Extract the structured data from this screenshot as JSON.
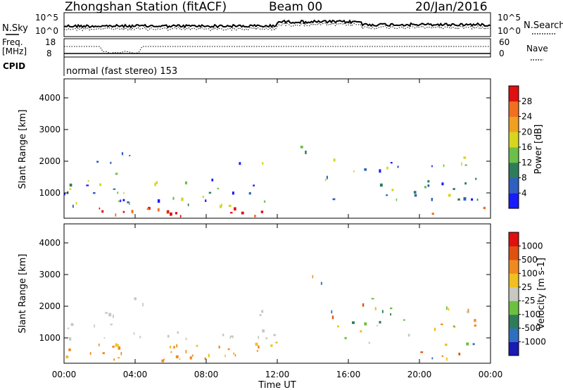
{
  "header": {
    "title": "Zhongshan Station (fitACF)",
    "beam": "Beam 00",
    "date": "20/Jan/2016"
  },
  "status_panel": {
    "nsky_label": "N.Sky",
    "nsearch_label": "N.Search",
    "nsky_ticks": [
      "10^5",
      "10^0"
    ],
    "freq_label_1": "Freq.",
    "freq_label_2": "[MHz]",
    "freq_ticks": [
      "18",
      "8"
    ],
    "nave_label": "Nave",
    "nave_ticks": [
      "60",
      "0"
    ],
    "cpid_label": "CPID",
    "mode_text": "normal (fast stereo) 153"
  },
  "chart_data": [
    {
      "type": "heatmap",
      "name": "power",
      "ylabel": "Slant Range [km]",
      "yticks": [
        1000,
        2000,
        3000,
        4000
      ],
      "ylim": [
        200,
        4600
      ],
      "colorbar_label": "Power [dB]",
      "colorbar_ticks": [
        "4",
        "8",
        "12",
        "16",
        "20",
        "24",
        "28"
      ],
      "colors": [
        "#1a1aff",
        "#2f5fbf",
        "#2e7d5a",
        "#6cbf4a",
        "#d6d61e",
        "#f0a020",
        "#f07020",
        "#e01010"
      ]
    },
    {
      "type": "heatmap",
      "name": "velocity",
      "ylabel": "Slant Range [km]",
      "yticks": [
        1000,
        2000,
        3000,
        4000
      ],
      "ylim": [
        200,
        4600
      ],
      "colorbar_label": "Velocity [m s-1]",
      "colorbar_ticks": [
        "1000",
        "500",
        "100",
        "25",
        "-25",
        "-100",
        "-500",
        "-1000"
      ],
      "colors": [
        "#1a1ab4",
        "#2f6fbf",
        "#2e7d5a",
        "#6cc040",
        "#c8c8c0",
        "#f0c020",
        "#f08a20",
        "#e05010",
        "#e01010"
      ]
    }
  ],
  "time_axis": {
    "xlabel": "Time UT",
    "ticks": [
      "00:00",
      "04:00",
      "08:00",
      "12:00",
      "16:00",
      "20:00",
      "00:00"
    ]
  }
}
